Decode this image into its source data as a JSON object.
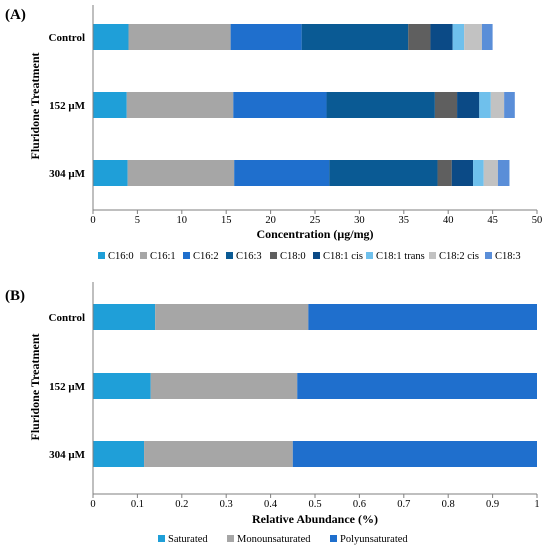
{
  "chart_data": [
    {
      "type": "bar",
      "orientation": "horizontal",
      "stacked": true,
      "panel": "(A)",
      "categories": [
        "Control",
        "152 μM",
        "304 μM"
      ],
      "xlabel": "Concentration (μg/mg)",
      "ylabel": "Fluridone Treatment",
      "xlim": [
        0,
        50
      ],
      "xticks": [
        "0",
        "5",
        "10",
        "15",
        "20",
        "25",
        "30",
        "35",
        "40",
        "45",
        "50"
      ],
      "grid": false,
      "legend_position": "bottom",
      "series": [
        {
          "name": "C16:0",
          "color": "#1f9fd8",
          "values": [
            4.0,
            3.8,
            3.9
          ]
        },
        {
          "name": "C16:1",
          "color": "#a6a6a6",
          "values": [
            11.5,
            12.0,
            12.0
          ]
        },
        {
          "name": "C16:2",
          "color": "#1f6fcd",
          "values": [
            8.0,
            10.5,
            10.7
          ]
        },
        {
          "name": "C16:3",
          "color": "#0a5a94",
          "values": [
            12.0,
            12.2,
            12.2
          ]
        },
        {
          "name": "C18:0",
          "color": "#5f5f5f",
          "values": [
            2.5,
            2.5,
            1.6
          ]
        },
        {
          "name": "C18:1 cis",
          "color": "#0b4a86",
          "values": [
            2.5,
            2.5,
            2.4
          ]
        },
        {
          "name": "C18:1 trans",
          "color": "#6fc0ec",
          "values": [
            1.3,
            1.3,
            1.2
          ]
        },
        {
          "name": "C18:2 cis",
          "color": "#c2c2c2",
          "values": [
            2.0,
            1.5,
            1.6
          ]
        },
        {
          "name": "C18:3",
          "color": "#5a8ed8",
          "values": [
            1.2,
            1.2,
            1.3
          ]
        }
      ]
    },
    {
      "type": "bar",
      "orientation": "horizontal",
      "stacked": true,
      "panel": "(B)",
      "categories": [
        "Control",
        "152 μM",
        "304 μM"
      ],
      "xlabel": "Relative Abundance (%)",
      "ylabel": "Fluridone Treatment",
      "xlim": [
        0,
        1
      ],
      "xticks": [
        "0",
        "0.1",
        "0.2",
        "0.3",
        "0.4",
        "0.5",
        "0.6",
        "0.7",
        "0.8",
        "0.9",
        "1"
      ],
      "grid": false,
      "legend_position": "bottom",
      "series": [
        {
          "name": "Saturated",
          "color": "#1f9fd8",
          "values": [
            0.14,
            0.13,
            0.115
          ]
        },
        {
          "name": "Monounsaturated",
          "color": "#a6a6a6",
          "values": [
            0.345,
            0.33,
            0.335
          ]
        },
        {
          "name": "Polyunsaturated",
          "color": "#1f6fcd",
          "values": [
            0.515,
            0.54,
            0.55
          ]
        }
      ]
    }
  ]
}
